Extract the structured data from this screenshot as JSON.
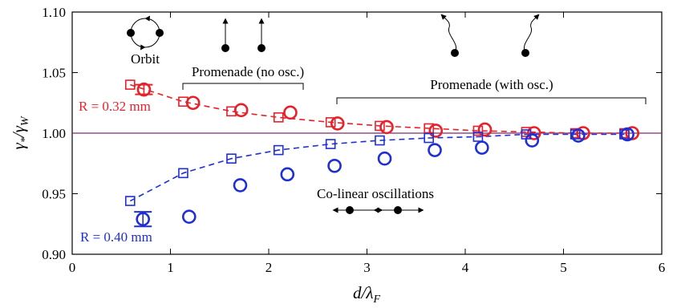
{
  "chart_data": {
    "type": "scatter",
    "xlabel": "d/λ_F",
    "ylabel": "γ*/γ_W",
    "xlim": [
      0,
      6
    ],
    "ylim": [
      0.9,
      1.1
    ],
    "x_ticks": [
      "0",
      "1",
      "2",
      "3",
      "4",
      "5",
      "6"
    ],
    "y_ticks": [
      "0.90",
      "0.95",
      "1.00",
      "1.05",
      "1.10"
    ],
    "reference_line_y": 1.0,
    "grid": false,
    "series": [
      {
        "group": "R = 0.32 mm",
        "color": "#e8202a",
        "marker": "square",
        "line": "dashed",
        "x": [
          0.59,
          1.13,
          1.62,
          2.1,
          2.63,
          3.13,
          3.63,
          4.13,
          4.62,
          5.12,
          5.62
        ],
        "y": [
          1.04,
          1.026,
          1.018,
          1.013,
          1.009,
          1.006,
          1.004,
          1.002,
          1.001,
          1.0,
          1.0
        ]
      },
      {
        "group": "R = 0.32 mm",
        "color": "#e8202a",
        "marker": "circle",
        "line": "none",
        "x": [
          0.73,
          1.23,
          1.72,
          2.22,
          2.7,
          3.2,
          3.7,
          4.2,
          4.7,
          5.2,
          5.7
        ],
        "y": [
          1.036,
          1.025,
          1.019,
          1.017,
          1.008,
          1.005,
          1.002,
          1.003,
          1.0,
          1.0,
          1.0
        ],
        "errorbar": {
          "x": 0.73,
          "y": 1.036,
          "err": 0.004
        }
      },
      {
        "group": "R = 0.40 mm",
        "color": "#1f2fd6",
        "marker": "square",
        "line": "dashed",
        "x": [
          0.59,
          1.13,
          1.62,
          2.1,
          2.63,
          3.13,
          3.63,
          4.13,
          4.62,
          5.12,
          5.62
        ],
        "y": [
          0.944,
          0.967,
          0.979,
          0.986,
          0.991,
          0.994,
          0.996,
          0.997,
          0.999,
          0.999,
          0.999
        ]
      },
      {
        "group": "R = 0.40 mm",
        "color": "#1f2fd6",
        "marker": "circle",
        "line": "none",
        "x": [
          0.72,
          1.19,
          1.71,
          2.19,
          2.67,
          3.18,
          3.69,
          4.17,
          4.68,
          5.15,
          5.65
        ],
        "y": [
          0.929,
          0.931,
          0.957,
          0.966,
          0.973,
          0.979,
          0.986,
          0.988,
          0.994,
          0.998,
          0.999
        ],
        "errorbar": {
          "x": 0.72,
          "y": 0.929,
          "err": 0.006
        }
      }
    ],
    "annotations": {
      "red_label": "R = 0.32 mm",
      "blue_label": "R = 0.40 mm",
      "orbit": "Orbit",
      "promenade_no_osc": "Promenade (no osc.)",
      "promenade_with_osc": "Promenade (with osc.)",
      "colinear": "Co-linear oscillations"
    }
  }
}
